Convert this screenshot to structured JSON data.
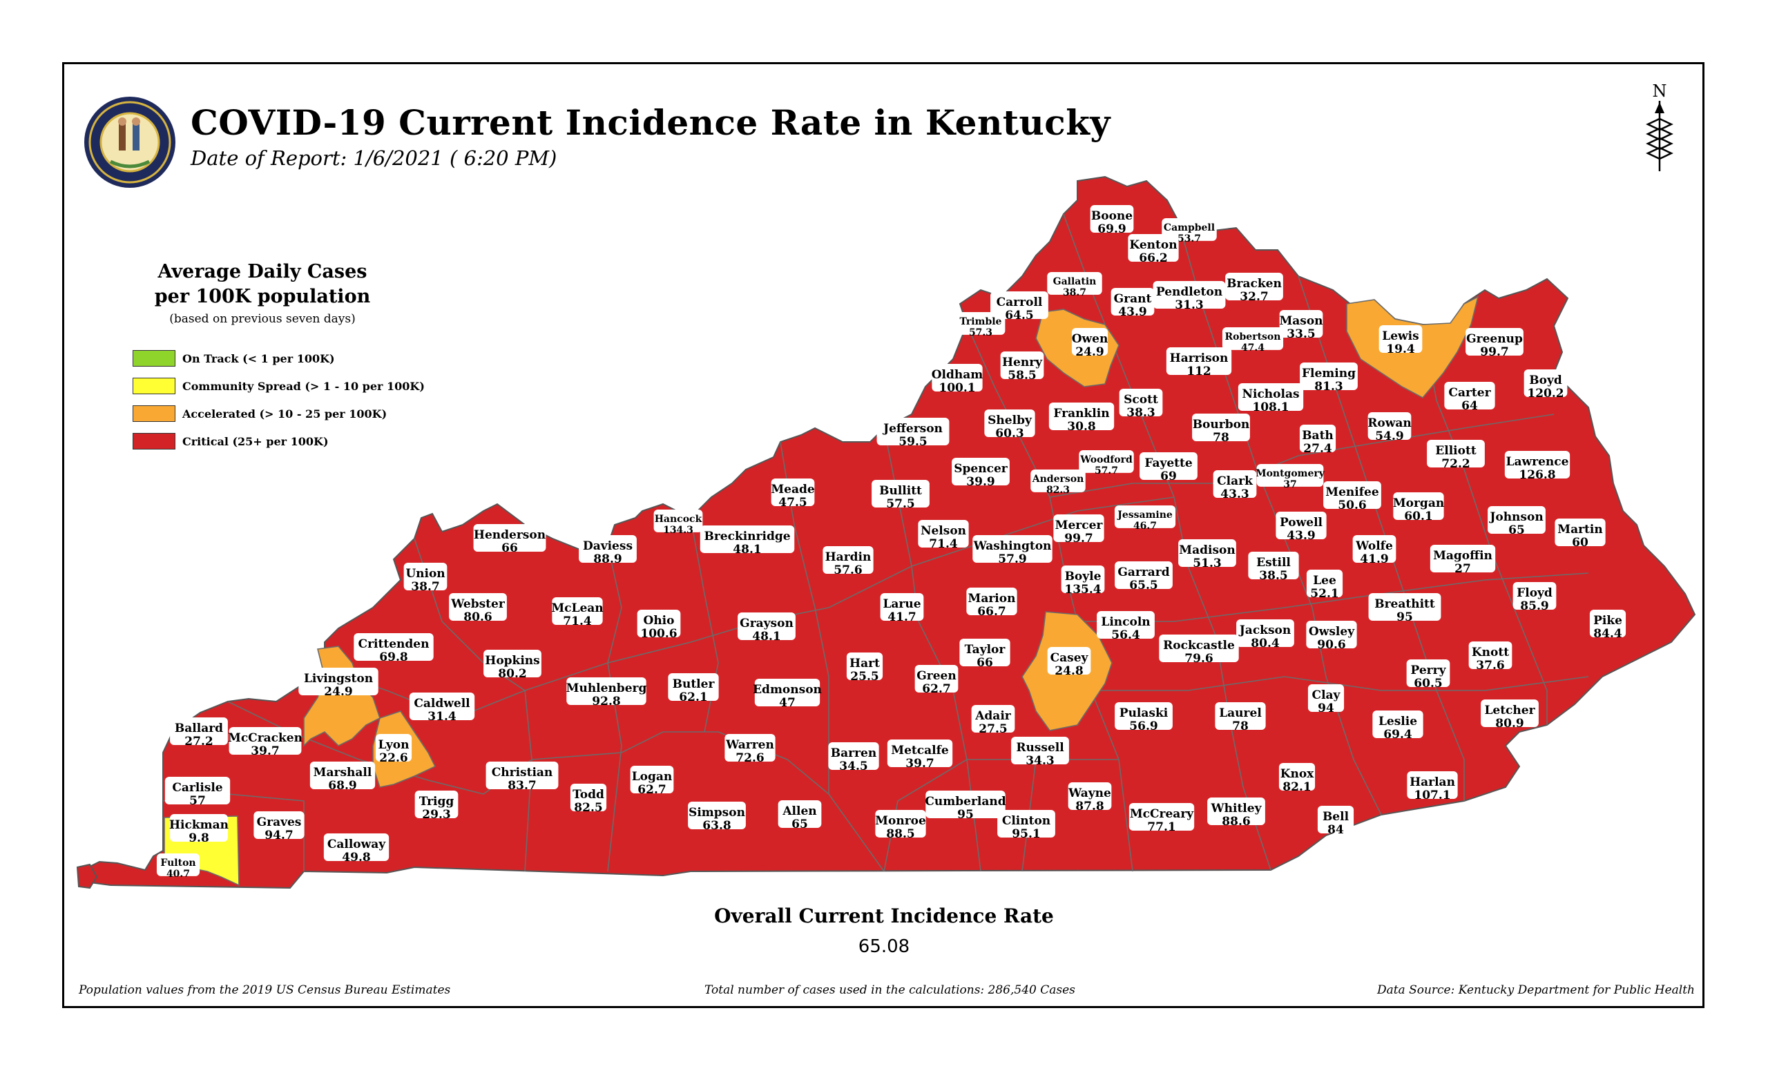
{
  "title": "COVID-19 Current Incidence Rate in Kentucky",
  "subtitle": "Date of Report: 1/6/2021 ( 6:20 PM)",
  "north_label": "N",
  "legend": {
    "title_line1": "Average Daily Cases",
    "title_line2": "per 100K population",
    "note": "(based on previous seven days)",
    "items": [
      {
        "label": "On Track (< 1 per 100K)",
        "color": "#8fd42a"
      },
      {
        "label": "Community Spread (> 1 - 10 per 100K)",
        "color": "#ffff33"
      },
      {
        "label": "Accelerated (> 10 - 25 per 100K)",
        "color": "#f9a933"
      },
      {
        "label": "Critical (25+ per 100K)",
        "color": "#d42326"
      }
    ]
  },
  "overall": {
    "title": "Overall Current Incidence Rate",
    "value": "65.08"
  },
  "footer": {
    "left": "Population values from the 2019 US Census Bureau Estimates",
    "center": "Total number of cases used in the calculations: 286,540 Cases",
    "right": "Data Source: Kentucky Department for Public Health"
  },
  "counties": [
    {
      "name": "Boone",
      "value": "69.9"
    },
    {
      "name": "Campbell",
      "value": "53.7"
    },
    {
      "name": "Kenton",
      "value": "66.2"
    },
    {
      "name": "Gallatin",
      "value": "38.7"
    },
    {
      "name": "Carroll",
      "value": "64.5"
    },
    {
      "name": "Trimble",
      "value": "57.3"
    },
    {
      "name": "Grant",
      "value": "43.9"
    },
    {
      "name": "Pendleton",
      "value": "31.3"
    },
    {
      "name": "Bracken",
      "value": "32.7"
    },
    {
      "name": "Mason",
      "value": "33.5"
    },
    {
      "name": "Robertson",
      "value": "47.4"
    },
    {
      "name": "Lewis",
      "value": "19.4"
    },
    {
      "name": "Greenup",
      "value": "99.7"
    },
    {
      "name": "Boyd",
      "value": "120.2"
    },
    {
      "name": "Owen",
      "value": "24.9"
    },
    {
      "name": "Henry",
      "value": "58.5"
    },
    {
      "name": "Oldham",
      "value": "100.1"
    },
    {
      "name": "Harrison",
      "value": "112"
    },
    {
      "name": "Fleming",
      "value": "81.3"
    },
    {
      "name": "Nicholas",
      "value": "108.1"
    },
    {
      "name": "Carter",
      "value": "64"
    },
    {
      "name": "Scott",
      "value": "38.3"
    },
    {
      "name": "Franklin",
      "value": "30.8"
    },
    {
      "name": "Shelby",
      "value": "60.3"
    },
    {
      "name": "Jefferson",
      "value": "59.5"
    },
    {
      "name": "Bourbon",
      "value": "78"
    },
    {
      "name": "Bath",
      "value": "27.4"
    },
    {
      "name": "Rowan",
      "value": "54.9"
    },
    {
      "name": "Elliott",
      "value": "72.2"
    },
    {
      "name": "Lawrence",
      "value": "126.8"
    },
    {
      "name": "Woodford",
      "value": "57.7"
    },
    {
      "name": "Fayette",
      "value": "69"
    },
    {
      "name": "Spencer",
      "value": "39.9"
    },
    {
      "name": "Anderson",
      "value": "82.3"
    },
    {
      "name": "Montgomery",
      "value": "37"
    },
    {
      "name": "Clark",
      "value": "43.3"
    },
    {
      "name": "Menifee",
      "value": "50.6"
    },
    {
      "name": "Morgan",
      "value": "60.1"
    },
    {
      "name": "Meade",
      "value": "47.5"
    },
    {
      "name": "Bullitt",
      "value": "57.5"
    },
    {
      "name": "Jessamine",
      "value": "46.7"
    },
    {
      "name": "Johnson",
      "value": "65"
    },
    {
      "name": "Martin",
      "value": "60"
    },
    {
      "name": "Hancock",
      "value": "134.3"
    },
    {
      "name": "Henderson",
      "value": "66"
    },
    {
      "name": "Breckinridge",
      "value": "48.1"
    },
    {
      "name": "Daviess",
      "value": "88.9"
    },
    {
      "name": "Nelson",
      "value": "71.4"
    },
    {
      "name": "Mercer",
      "value": "99.7"
    },
    {
      "name": "Washington",
      "value": "57.9"
    },
    {
      "name": "Powell",
      "value": "43.9"
    },
    {
      "name": "Wolfe",
      "value": "41.9"
    },
    {
      "name": "Madison",
      "value": "51.3"
    },
    {
      "name": "Magoffin",
      "value": "27"
    },
    {
      "name": "Union",
      "value": "38.7"
    },
    {
      "name": "Hardin",
      "value": "57.6"
    },
    {
      "name": "Estill",
      "value": "38.5"
    },
    {
      "name": "Garrard",
      "value": "65.5"
    },
    {
      "name": "Boyle",
      "value": "135.4"
    },
    {
      "name": "Lee",
      "value": "52.1"
    },
    {
      "name": "Breathitt",
      "value": "95"
    },
    {
      "name": "Floyd",
      "value": "85.9"
    },
    {
      "name": "Webster",
      "value": "80.6"
    },
    {
      "name": "McLean",
      "value": "71.4"
    },
    {
      "name": "Larue",
      "value": "41.7"
    },
    {
      "name": "Marion",
      "value": "66.7"
    },
    {
      "name": "Ohio",
      "value": "100.6"
    },
    {
      "name": "Grayson",
      "value": "48.1"
    },
    {
      "name": "Lincoln",
      "value": "56.4"
    },
    {
      "name": "Jackson",
      "value": "80.4"
    },
    {
      "name": "Owsley",
      "value": "90.6"
    },
    {
      "name": "Pike",
      "value": "84.4"
    },
    {
      "name": "Crittenden",
      "value": "69.8"
    },
    {
      "name": "Rockcastle",
      "value": "79.6"
    },
    {
      "name": "Knott",
      "value": "37.6"
    },
    {
      "name": "Casey",
      "value": "24.8"
    },
    {
      "name": "Taylor",
      "value": "66"
    },
    {
      "name": "Hopkins",
      "value": "80.2"
    },
    {
      "name": "Hart",
      "value": "25.5"
    },
    {
      "name": "Livingston",
      "value": "24.9"
    },
    {
      "name": "Muhlenberg",
      "value": "92.8"
    },
    {
      "name": "Green",
      "value": "62.7"
    },
    {
      "name": "Perry",
      "value": "60.5"
    },
    {
      "name": "Butler",
      "value": "62.1"
    },
    {
      "name": "Edmonson",
      "value": "47"
    },
    {
      "name": "Clay",
      "value": "94"
    },
    {
      "name": "Caldwell",
      "value": "31.4"
    },
    {
      "name": "Pulaski",
      "value": "56.9"
    },
    {
      "name": "Laurel",
      "value": "78"
    },
    {
      "name": "Adair",
      "value": "27.5"
    },
    {
      "name": "Letcher",
      "value": "80.9"
    },
    {
      "name": "Leslie",
      "value": "69.4"
    },
    {
      "name": "Ballard",
      "value": "27.2"
    },
    {
      "name": "McCracken",
      "value": "39.7"
    },
    {
      "name": "Lyon",
      "value": "22.6"
    },
    {
      "name": "Warren",
      "value": "72.6"
    },
    {
      "name": "Metcalfe",
      "value": "39.7"
    },
    {
      "name": "Barren",
      "value": "34.5"
    },
    {
      "name": "Russell",
      "value": "34.3"
    },
    {
      "name": "Marshall",
      "value": "68.9"
    },
    {
      "name": "Christian",
      "value": "83.7"
    },
    {
      "name": "Logan",
      "value": "62.7"
    },
    {
      "name": "Knox",
      "value": "82.1"
    },
    {
      "name": "Harlan",
      "value": "107.1"
    },
    {
      "name": "Carlisle",
      "value": "57"
    },
    {
      "name": "Trigg",
      "value": "29.3"
    },
    {
      "name": "Todd",
      "value": "82.5"
    },
    {
      "name": "Wayne",
      "value": "87.8"
    },
    {
      "name": "Cumberland",
      "value": "95"
    },
    {
      "name": "Whitley",
      "value": "88.6"
    },
    {
      "name": "Simpson",
      "value": "63.8"
    },
    {
      "name": "Allen",
      "value": "65"
    },
    {
      "name": "Hickman",
      "value": "9.8"
    },
    {
      "name": "Graves",
      "value": "94.7"
    },
    {
      "name": "Monroe",
      "value": "88.5"
    },
    {
      "name": "Clinton",
      "value": "95.1"
    },
    {
      "name": "McCreary",
      "value": "77.1"
    },
    {
      "name": "Bell",
      "value": "84"
    },
    {
      "name": "Calloway",
      "value": "49.8"
    },
    {
      "name": "Fulton",
      "value": "40.7"
    }
  ]
}
